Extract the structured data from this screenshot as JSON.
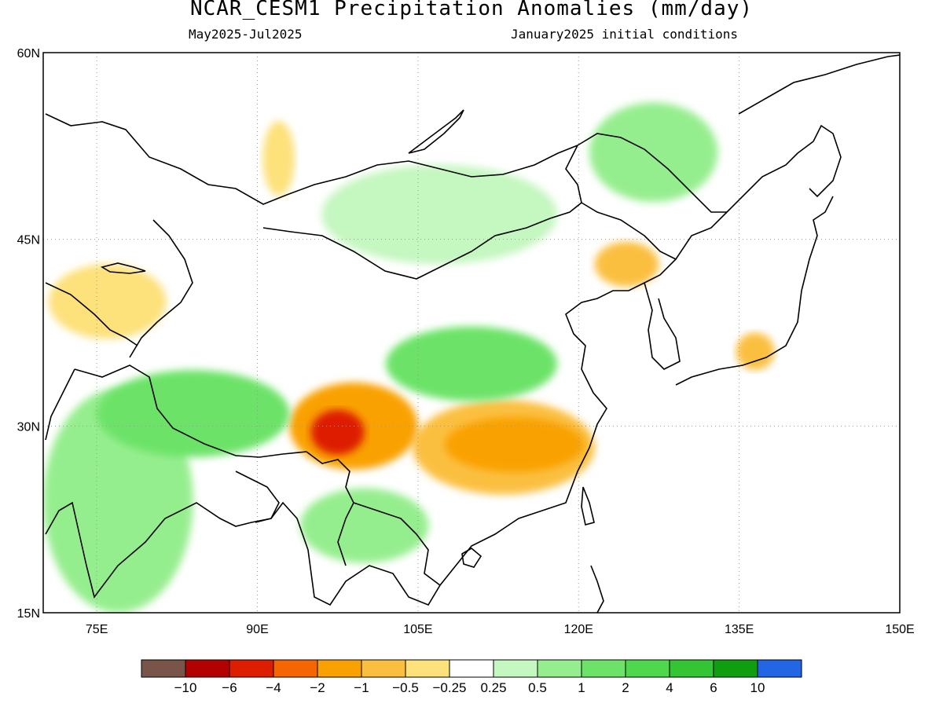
{
  "title": "NCAR_CESM1 Precipitation Anomalies (mm/day)",
  "period": "May2025-Jul2025",
  "init": "January2025 initial conditions",
  "map": {
    "lon_range": [
      70,
      150
    ],
    "lat_range": [
      15,
      60
    ],
    "x_ticks": [
      {
        "lon": 75,
        "label": "75E"
      },
      {
        "lon": 90,
        "label": "90E"
      },
      {
        "lon": 105,
        "label": "105E"
      },
      {
        "lon": 120,
        "label": "120E"
      },
      {
        "lon": 135,
        "label": "135E"
      },
      {
        "lon": 150,
        "label": "150E"
      }
    ],
    "y_ticks": [
      {
        "lat": 60,
        "label": "60N"
      },
      {
        "lat": 45,
        "label": "45N"
      },
      {
        "lat": 30,
        "label": "30N"
      },
      {
        "lat": 15,
        "label": "15N"
      }
    ],
    "grid": "dotted"
  },
  "colorbar": {
    "colors": [
      "#785548",
      "#b30000",
      "#dd1d00",
      "#f56500",
      "#f9a100",
      "#fbbf3f",
      "#fde17a",
      "#ffffff",
      "#c5f7c0",
      "#95ee8e",
      "#6ce368",
      "#4fd84e",
      "#33c533",
      "#0f9e0f",
      "#2266e6"
    ],
    "labels": [
      "-10",
      "-6",
      "-4",
      "-2",
      "-1",
      "-0.5",
      "-0.25",
      "0.25",
      "0.5",
      "1",
      "2",
      "4",
      "6",
      "10"
    ]
  },
  "anomaly_regions": [
    {
      "name": "sichuan-yunnan-dry",
      "level": "-4",
      "lon": 97.5,
      "lat": 29.5,
      "rx": 2.5,
      "ry": 1.8
    },
    {
      "name": "sichuan-dry",
      "level": "-1",
      "lon": 99,
      "lat": 30,
      "rx": 6,
      "ry": 3.5
    },
    {
      "name": "south-china-dry",
      "level": "-1",
      "lon": 114,
      "lat": 28.5,
      "rx": 6.5,
      "ry": 2.2
    },
    {
      "name": "yangtze-dry",
      "level": "-0.5",
      "lon": 113,
      "lat": 28.3,
      "rx": 8.5,
      "ry": 3.8
    },
    {
      "name": "ne-china-dry",
      "level": "-0.5",
      "lon": 124.5,
      "lat": 43,
      "rx": 3,
      "ry": 1.8
    },
    {
      "name": "japan-dry",
      "level": "-0.5",
      "lon": 136.5,
      "lat": 36,
      "rx": 1.8,
      "ry": 1.5
    },
    {
      "name": "kazakh-dry",
      "level": "-0.25",
      "lon": 76,
      "lat": 40,
      "rx": 5.5,
      "ry": 3
    },
    {
      "name": "siberia-dry",
      "level": "-0.25",
      "lon": 92,
      "lat": 51.5,
      "rx": 1.5,
      "ry": 3
    },
    {
      "name": "mongolia-wet",
      "level": "0.25",
      "lon": 107,
      "lat": 47,
      "rx": 11,
      "ry": 4
    },
    {
      "name": "manchuria-wet",
      "level": "0.5",
      "lon": 127,
      "lat": 52,
      "rx": 6,
      "ry": 4
    },
    {
      "name": "north-china-wet",
      "level": "1",
      "lon": 110,
      "lat": 35,
      "rx": 8,
      "ry": 3
    },
    {
      "name": "himalaya-wet",
      "level": "1",
      "lon": 84,
      "lat": 31,
      "rx": 9,
      "ry": 3.5
    },
    {
      "name": "india-wet",
      "level": "0.5",
      "lon": 77,
      "lat": 24,
      "rx": 7,
      "ry": 9
    },
    {
      "name": "indochina-wet",
      "level": "0.5",
      "lon": 100,
      "lat": 22,
      "rx": 6,
      "ry": 3
    }
  ]
}
